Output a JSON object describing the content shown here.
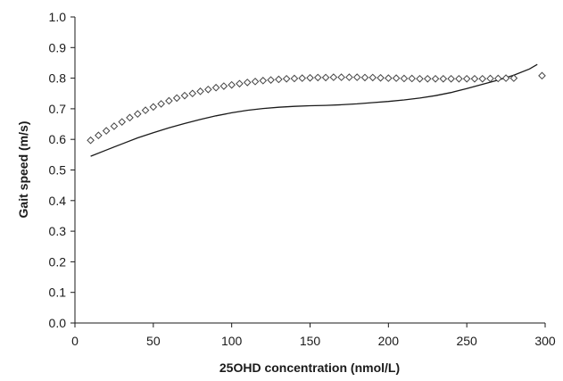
{
  "chart_data": {
    "type": "scatter",
    "title": "",
    "xlabel": "25OHD concentration (nmol/L)",
    "ylabel": "Gait speed (m/s)",
    "xlim": [
      0,
      300
    ],
    "ylim": [
      0,
      1.0
    ],
    "x_ticks": [
      "0",
      "50",
      "100",
      "150",
      "200",
      "250",
      "300"
    ],
    "y_ticks": [
      "0.0",
      "0.1",
      "0.2",
      "0.3",
      "0.4",
      "0.5",
      "0.6",
      "0.7",
      "0.8",
      "0.9",
      "1.0"
    ],
    "grid": false,
    "legend": "none",
    "series": [
      {
        "style": "line",
        "color": "#1a1a1a",
        "x": [
          10,
          20,
          30,
          40,
          50,
          60,
          70,
          80,
          90,
          100,
          110,
          120,
          130,
          140,
          150,
          160,
          170,
          180,
          190,
          200,
          210,
          220,
          230,
          240,
          250,
          260,
          270,
          280,
          290,
          295
        ],
        "y": [
          0.545,
          0.565,
          0.585,
          0.605,
          0.622,
          0.638,
          0.652,
          0.665,
          0.677,
          0.687,
          0.695,
          0.701,
          0.705,
          0.708,
          0.71,
          0.711,
          0.713,
          0.716,
          0.72,
          0.724,
          0.729,
          0.735,
          0.743,
          0.753,
          0.766,
          0.78,
          0.794,
          0.81,
          0.83,
          0.845
        ]
      },
      {
        "style": "markers",
        "marker": "diamond",
        "color": "#444444",
        "x": [
          10,
          15,
          20,
          25,
          30,
          35,
          40,
          45,
          50,
          55,
          60,
          65,
          70,
          75,
          80,
          85,
          90,
          95,
          100,
          105,
          110,
          115,
          120,
          125,
          130,
          135,
          140,
          145,
          150,
          155,
          160,
          165,
          170,
          175,
          180,
          185,
          190,
          195,
          200,
          205,
          210,
          215,
          220,
          225,
          230,
          235,
          240,
          245,
          250,
          255,
          260,
          265,
          270,
          275,
          280,
          298
        ],
        "y": [
          0.597,
          0.613,
          0.628,
          0.643,
          0.657,
          0.671,
          0.683,
          0.695,
          0.706,
          0.716,
          0.726,
          0.735,
          0.743,
          0.75,
          0.757,
          0.763,
          0.769,
          0.774,
          0.778,
          0.782,
          0.786,
          0.789,
          0.792,
          0.794,
          0.796,
          0.798,
          0.799,
          0.8,
          0.801,
          0.802,
          0.802,
          0.803,
          0.803,
          0.803,
          0.803,
          0.802,
          0.802,
          0.801,
          0.8,
          0.8,
          0.799,
          0.799,
          0.798,
          0.798,
          0.798,
          0.798,
          0.798,
          0.798,
          0.798,
          0.798,
          0.798,
          0.799,
          0.799,
          0.8,
          0.8,
          0.808
        ]
      }
    ]
  }
}
